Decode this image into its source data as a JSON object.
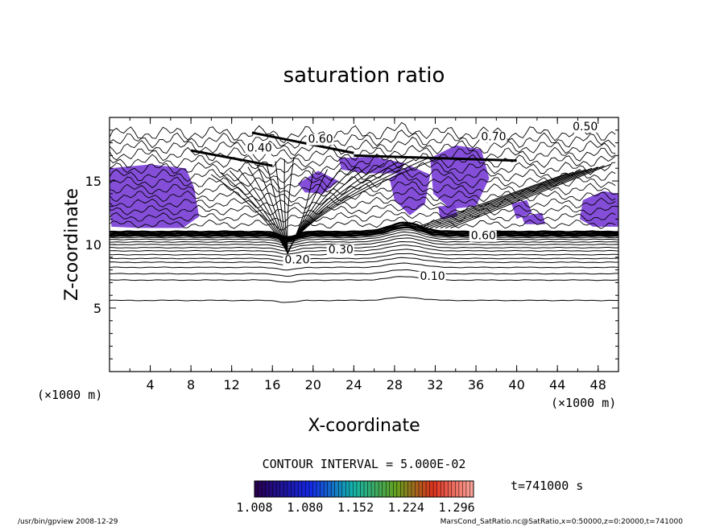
{
  "chart_data": {
    "type": "contour",
    "title": "saturation ratio",
    "xlabel": "X-coordinate",
    "ylabel": "Z-coordinate",
    "x_unit": "(×1000 m)",
    "z_unit": "(×1000 m)",
    "xlim": [
      0,
      50
    ],
    "zlim": [
      0,
      20
    ],
    "x_ticks": [
      "4",
      "8",
      "12",
      "16",
      "20",
      "24",
      "28",
      "32",
      "36",
      "40",
      "44",
      "48"
    ],
    "z_ticks": [
      "5",
      "10",
      "15"
    ],
    "contour_interval_text": "CONTOUR INTERVAL = 5.000E-02",
    "time_text": "t=741000 s",
    "colorbar": {
      "tick_labels": [
        "1.008",
        "1.080",
        "1.152",
        "1.224",
        "1.296"
      ],
      "range": [
        1.008,
        1.32
      ]
    },
    "shade_color": "#7a3fd6",
    "contour_labels": [
      {
        "text": "0.10",
        "x": 30.5,
        "z": 7.2
      },
      {
        "text": "0.20",
        "x": 17.2,
        "z": 8.5
      },
      {
        "text": "0.30",
        "x": 21.5,
        "z": 9.3
      },
      {
        "text": "0.50",
        "x": 45.5,
        "z": 19.0
      },
      {
        "text": "0.60",
        "x": 35.5,
        "z": 10.4
      },
      {
        "text": "0.70",
        "x": 36.5,
        "z": 18.2
      },
      {
        "text": "0.40",
        "x": 13.5,
        "z": 17.3
      },
      {
        "text": "0.60",
        "x": 19.5,
        "z": 18.0
      }
    ],
    "footer_left": "/usr/bin/gpview   2008-12-29",
    "footer_right": "MarsCond_SatRatio.nc@SatRatio,x=0:50000,z=0:20000,t=741000"
  }
}
